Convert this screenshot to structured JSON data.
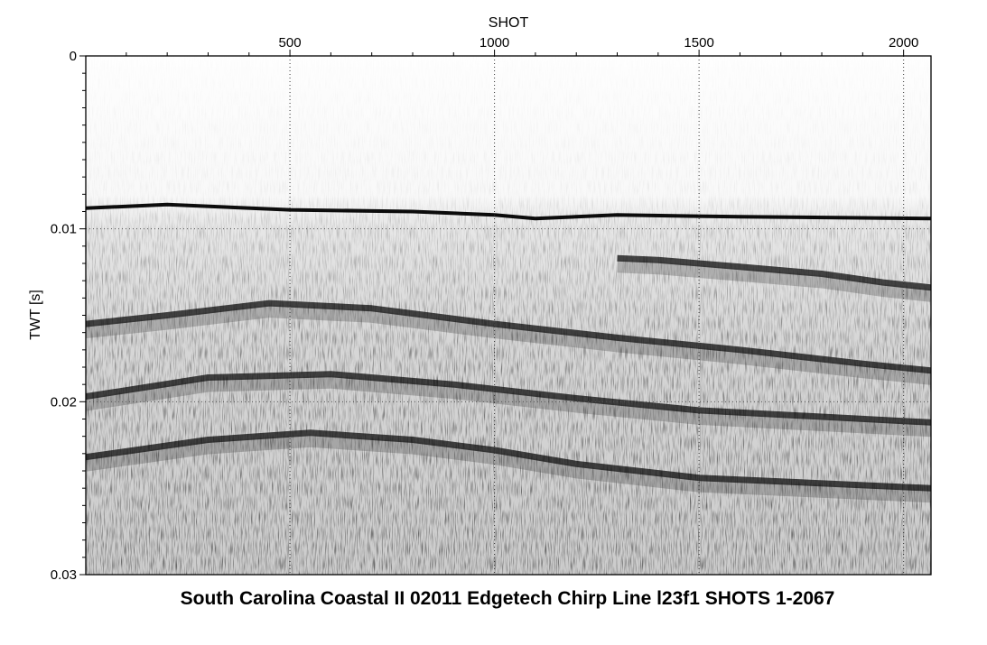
{
  "chart_data": {
    "type": "heatmap",
    "title": "South Carolina Coastal II 02011 Edgetech Chirp Line l23f1 SHOTS 1-2067",
    "xlabel": "SHOT",
    "ylabel": "TWT [s]",
    "xlim": [
      1,
      2067
    ],
    "ylim": [
      0,
      0.03
    ],
    "x_ticks": [
      500,
      1000,
      1500,
      2000
    ],
    "x_tick_labels": [
      "500",
      "1000",
      "1500",
      "2000"
    ],
    "y_ticks": [
      0,
      0.01,
      0.02,
      0.03
    ],
    "y_tick_labels": [
      "0",
      "0.01",
      "0.02",
      "0.03"
    ],
    "grid": true,
    "colormap": "grayscale",
    "reflectors": [
      {
        "name": "seafloor",
        "points": [
          [
            1,
            0.0088
          ],
          [
            200,
            0.0086
          ],
          [
            500,
            0.0089
          ],
          [
            800,
            0.009
          ],
          [
            1000,
            0.0092
          ],
          [
            1100,
            0.0094
          ],
          [
            1300,
            0.0092
          ],
          [
            1600,
            0.0093
          ],
          [
            2067,
            0.0094
          ]
        ]
      },
      {
        "name": "r1",
        "points": [
          [
            1300,
            0.0117
          ],
          [
            1400,
            0.0118
          ],
          [
            1600,
            0.0122
          ],
          [
            1800,
            0.0126
          ],
          [
            1950,
            0.0131
          ],
          [
            2067,
            0.0134
          ]
        ]
      },
      {
        "name": "r2",
        "points": [
          [
            1,
            0.0155
          ],
          [
            200,
            0.015
          ],
          [
            450,
            0.0143
          ],
          [
            700,
            0.0146
          ],
          [
            1000,
            0.0155
          ],
          [
            1300,
            0.0163
          ],
          [
            1600,
            0.017
          ],
          [
            1900,
            0.0178
          ],
          [
            2067,
            0.0182
          ]
        ]
      },
      {
        "name": "r3",
        "points": [
          [
            1,
            0.0197
          ],
          [
            300,
            0.0186
          ],
          [
            600,
            0.0184
          ],
          [
            900,
            0.019
          ],
          [
            1200,
            0.0198
          ],
          [
            1500,
            0.0205
          ],
          [
            2067,
            0.0212
          ]
        ]
      },
      {
        "name": "r4",
        "points": [
          [
            1,
            0.0232
          ],
          [
            300,
            0.0222
          ],
          [
            550,
            0.0218
          ],
          [
            800,
            0.0222
          ],
          [
            1000,
            0.0228
          ],
          [
            1200,
            0.0236
          ],
          [
            1500,
            0.0244
          ],
          [
            2067,
            0.025
          ]
        ]
      }
    ]
  }
}
